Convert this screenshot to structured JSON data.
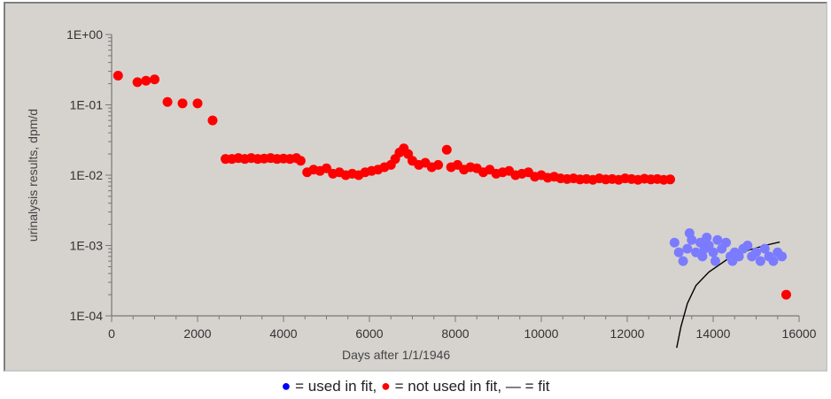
{
  "chart_data": {
    "type": "scatter",
    "xlabel": "Days after 1/1/1946",
    "ylabel": "urinalysis results, dpm/d",
    "xlim": [
      0,
      16000
    ],
    "ylim": [
      0.0001,
      1
    ],
    "yscale": "log",
    "grid": false,
    "x_ticks": [
      "0",
      "2000",
      "4000",
      "6000",
      "8000",
      "10000",
      "12000",
      "14000",
      "16000"
    ],
    "y_ticks": [
      "1E+00",
      "1E-01",
      "1E-02",
      "1E-03",
      "1E-04"
    ],
    "series": [
      {
        "name": "not used in fit",
        "color": "#ff0000",
        "points": [
          [
            150,
            0.26
          ],
          [
            600,
            0.21
          ],
          [
            800,
            0.22
          ],
          [
            1000,
            0.23
          ],
          [
            1300,
            0.11
          ],
          [
            1650,
            0.105
          ],
          [
            2000,
            0.105
          ],
          [
            2350,
            0.06
          ],
          [
            2650,
            0.017
          ],
          [
            2800,
            0.017
          ],
          [
            2950,
            0.0175
          ],
          [
            3100,
            0.017
          ],
          [
            3250,
            0.0175
          ],
          [
            3400,
            0.017
          ],
          [
            3550,
            0.0172
          ],
          [
            3700,
            0.0175
          ],
          [
            3850,
            0.017
          ],
          [
            4000,
            0.0172
          ],
          [
            4150,
            0.017
          ],
          [
            4300,
            0.0175
          ],
          [
            4400,
            0.016
          ],
          [
            4550,
            0.011
          ],
          [
            4700,
            0.012
          ],
          [
            4850,
            0.0115
          ],
          [
            5000,
            0.0125
          ],
          [
            5150,
            0.0105
          ],
          [
            5300,
            0.011
          ],
          [
            5450,
            0.01
          ],
          [
            5600,
            0.0105
          ],
          [
            5750,
            0.01
          ],
          [
            5900,
            0.011
          ],
          [
            6050,
            0.0115
          ],
          [
            6200,
            0.012
          ],
          [
            6350,
            0.013
          ],
          [
            6500,
            0.014
          ],
          [
            6600,
            0.017
          ],
          [
            6700,
            0.021
          ],
          [
            6800,
            0.024
          ],
          [
            6900,
            0.02
          ],
          [
            7000,
            0.016
          ],
          [
            7150,
            0.014
          ],
          [
            7300,
            0.015
          ],
          [
            7450,
            0.013
          ],
          [
            7600,
            0.014
          ],
          [
            7800,
            0.023
          ],
          [
            7900,
            0.013
          ],
          [
            8050,
            0.014
          ],
          [
            8200,
            0.012
          ],
          [
            8350,
            0.013
          ],
          [
            8500,
            0.0125
          ],
          [
            8650,
            0.011
          ],
          [
            8800,
            0.012
          ],
          [
            8950,
            0.0105
          ],
          [
            9100,
            0.011
          ],
          [
            9250,
            0.0115
          ],
          [
            9400,
            0.01
          ],
          [
            9550,
            0.0105
          ],
          [
            9700,
            0.011
          ],
          [
            9850,
            0.0095
          ],
          [
            10000,
            0.01
          ],
          [
            10150,
            0.0092
          ],
          [
            10300,
            0.0095
          ],
          [
            10450,
            0.009
          ],
          [
            10600,
            0.0088
          ],
          [
            10750,
            0.009
          ],
          [
            10900,
            0.0087
          ],
          [
            11050,
            0.0088
          ],
          [
            11200,
            0.0086
          ],
          [
            11350,
            0.009
          ],
          [
            11500,
            0.0087
          ],
          [
            11650,
            0.0088
          ],
          [
            11800,
            0.0086
          ],
          [
            11950,
            0.009
          ],
          [
            12100,
            0.0088
          ],
          [
            12250,
            0.0086
          ],
          [
            12400,
            0.0089
          ],
          [
            12550,
            0.0087
          ],
          [
            12700,
            0.0088
          ],
          [
            12850,
            0.0086
          ],
          [
            13000,
            0.0087
          ],
          [
            15700,
            0.0002
          ]
        ]
      },
      {
        "name": "used in fit",
        "color": "#7b7bff",
        "points": [
          [
            13100,
            0.0011
          ],
          [
            13200,
            0.0008
          ],
          [
            13300,
            0.0006
          ],
          [
            13400,
            0.0009
          ],
          [
            13450,
            0.0015
          ],
          [
            13500,
            0.0012
          ],
          [
            13600,
            0.0008
          ],
          [
            13700,
            0.0011
          ],
          [
            13750,
            0.0007
          ],
          [
            13800,
            0.0009
          ],
          [
            13850,
            0.0013
          ],
          [
            13900,
            0.001
          ],
          [
            14000,
            0.0008
          ],
          [
            14050,
            0.0006
          ],
          [
            14100,
            0.0012
          ],
          [
            14200,
            0.0009
          ],
          [
            14300,
            0.0011
          ],
          [
            14400,
            0.0007
          ],
          [
            14450,
            0.0006
          ],
          [
            14500,
            0.0008
          ],
          [
            14600,
            0.0007
          ],
          [
            14700,
            0.0009
          ],
          [
            14800,
            0.001
          ],
          [
            14900,
            0.0007
          ],
          [
            15000,
            0.0008
          ],
          [
            15100,
            0.0006
          ],
          [
            15200,
            0.0009
          ],
          [
            15300,
            0.0007
          ],
          [
            15400,
            0.0006
          ],
          [
            15500,
            0.0008
          ],
          [
            15600,
            0.0007
          ]
        ]
      }
    ],
    "fit_line": {
      "color": "#000000",
      "points": [
        [
          13150,
          3.5e-05
        ],
        [
          13250,
          7e-05
        ],
        [
          13400,
          0.00015
        ],
        [
          13600,
          0.00027
        ],
        [
          13900,
          0.00042
        ],
        [
          14300,
          0.00062
        ],
        [
          14800,
          0.00085
        ],
        [
          15200,
          0.001
        ],
        [
          15550,
          0.00112
        ]
      ]
    },
    "legend": {
      "used_color": "#0000ff",
      "not_used_color": "#ff0000",
      "bullet": "●",
      "used_text": " = used in fit, ",
      "not_used_text": " = not used in fit, ",
      "fit_text": "— = fit"
    }
  }
}
